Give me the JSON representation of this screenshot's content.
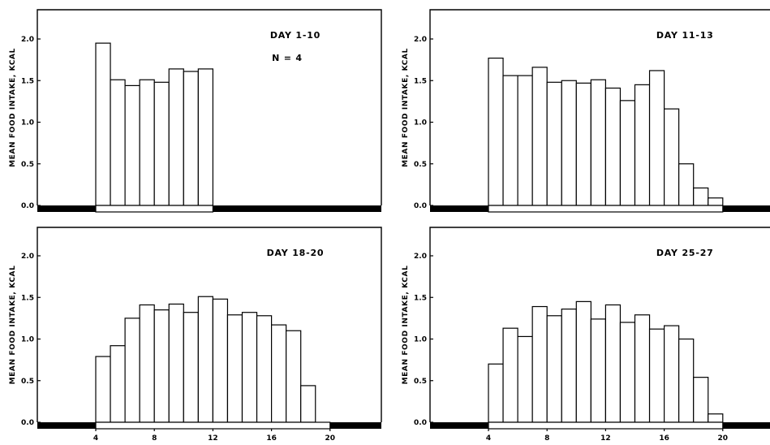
{
  "chart_data": [
    {
      "type": "bar",
      "title": "DAY 1-10",
      "annotation": "N = 4",
      "ylabel": "MEAN FOOD INTAKE, KCAL",
      "yticks": [
        "0.0",
        "0.5",
        "1.0",
        "1.5",
        "2.0"
      ],
      "xticks": [],
      "ylim": [
        0,
        2.4
      ],
      "xlim": [
        0,
        23
      ],
      "bar_width": 1,
      "light_period": [
        4,
        12
      ],
      "x": [
        4,
        5,
        6,
        7,
        8,
        9,
        10,
        11
      ],
      "values": [
        1.95,
        1.51,
        1.44,
        1.51,
        1.48,
        1.64,
        1.61,
        1.64
      ]
    },
    {
      "type": "bar",
      "title": "DAY 11-13",
      "annotation": "",
      "ylabel": "MEAN FOOD INTAKE, KCAL",
      "yticks": [
        "0.0",
        "0.5",
        "1.0",
        "1.5",
        "2.0"
      ],
      "xticks": [],
      "ylim": [
        0,
        2.4
      ],
      "xlim": [
        0,
        23
      ],
      "bar_width": 1,
      "light_period": [
        4,
        20
      ],
      "x": [
        4,
        5,
        6,
        7,
        8,
        9,
        10,
        11,
        12,
        13,
        14,
        15,
        16,
        17,
        18,
        19
      ],
      "values": [
        1.77,
        1.56,
        1.56,
        1.66,
        1.48,
        1.5,
        1.47,
        1.51,
        1.41,
        1.26,
        1.45,
        1.62,
        1.16,
        0.5,
        0.21,
        0.09
      ]
    },
    {
      "type": "bar",
      "title": "DAY 18-20",
      "annotation": "",
      "ylabel": "MEAN FOOD INTAKE, KCAL",
      "yticks": [
        "0.0",
        "0.5",
        "1.0",
        "1.5",
        "2.0"
      ],
      "xticks": [
        "4",
        "8",
        "12",
        "16",
        "20"
      ],
      "ylim": [
        0,
        2.4
      ],
      "xlim": [
        0,
        23
      ],
      "bar_width": 1,
      "light_period": [
        4,
        20
      ],
      "x": [
        4,
        5,
        6,
        7,
        8,
        9,
        10,
        11,
        12,
        13,
        14,
        15,
        16,
        17,
        18
      ],
      "values": [
        0.79,
        0.92,
        1.25,
        1.41,
        1.35,
        1.42,
        1.32,
        1.51,
        1.48,
        1.29,
        1.32,
        1.28,
        1.17,
        1.1,
        0.44
      ]
    },
    {
      "type": "bar",
      "title": "DAY 25-27",
      "annotation": "",
      "ylabel": "MEAN FOOD INTAKE, KCAL",
      "yticks": [
        "0.0",
        "0.5",
        "1.0",
        "1.5",
        "2.0"
      ],
      "xticks": [
        "4",
        "8",
        "12",
        "16",
        "20"
      ],
      "ylim": [
        0,
        2.4
      ],
      "xlim": [
        0,
        23
      ],
      "bar_width": 1,
      "light_period": [
        4,
        20
      ],
      "x": [
        4,
        5,
        6,
        7,
        8,
        9,
        10,
        11,
        12,
        13,
        14,
        15,
        16,
        17,
        18,
        19
      ],
      "values": [
        0.7,
        1.13,
        1.03,
        1.39,
        1.28,
        1.36,
        1.45,
        1.24,
        1.41,
        1.2,
        1.29,
        1.12,
        1.16,
        1.0,
        0.54,
        0.1
      ]
    }
  ]
}
